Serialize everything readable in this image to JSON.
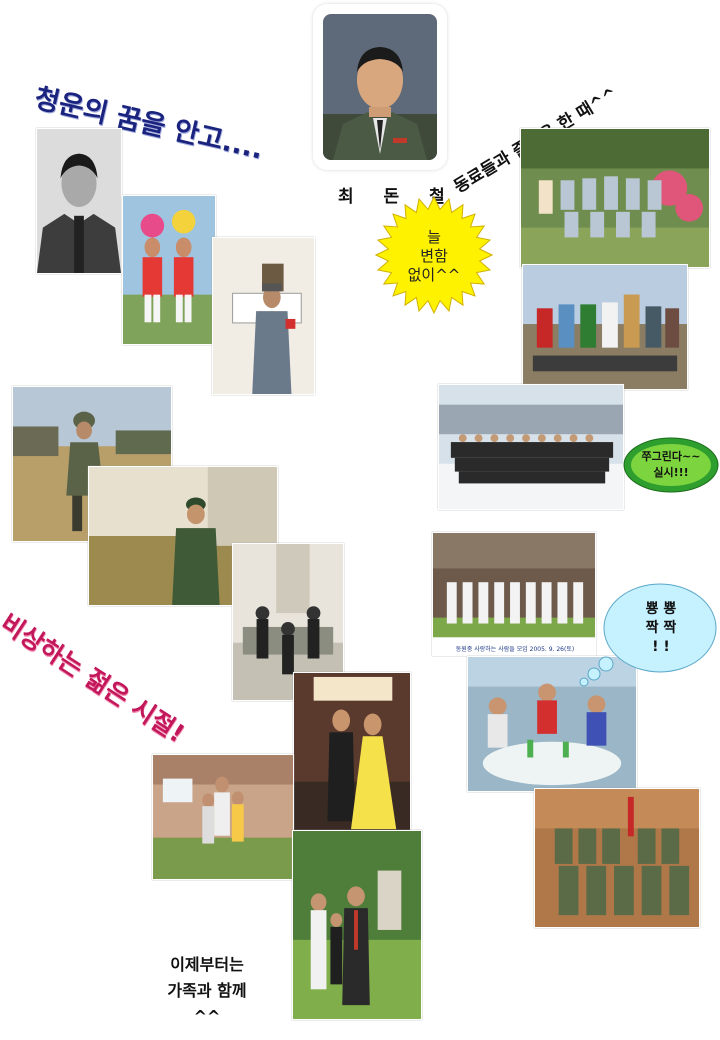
{
  "headline_dream": "청운의 꿈을 안고....",
  "headline_youth": "비상하는 젊은 시절!",
  "headline_colleagues": "동료들과 즐거운 한 때^^",
  "subject_name": "최 돈 철",
  "burst_text": [
    "늘",
    "변함",
    "없이^^"
  ],
  "oval_text": [
    "쭈그린다~~",
    "실시!!!"
  ],
  "cloud_text": [
    "뿅 뿅",
    "짝 짝",
    "! !"
  ],
  "family_caption": [
    "이제부터는",
    "가족과 함께",
    "^^"
  ],
  "group_photo_caption": "동원중 사랑하는 사람들 모임 2005. 9. 26(토)",
  "colors": {
    "headline_dream": "#1a237e",
    "headline_youth": "#c2185b",
    "headline_colleagues": "#111111",
    "burst_fill": "#fff200",
    "oval_fill": "#2e9e2e",
    "cloud_fill": "#c6f1ff"
  }
}
